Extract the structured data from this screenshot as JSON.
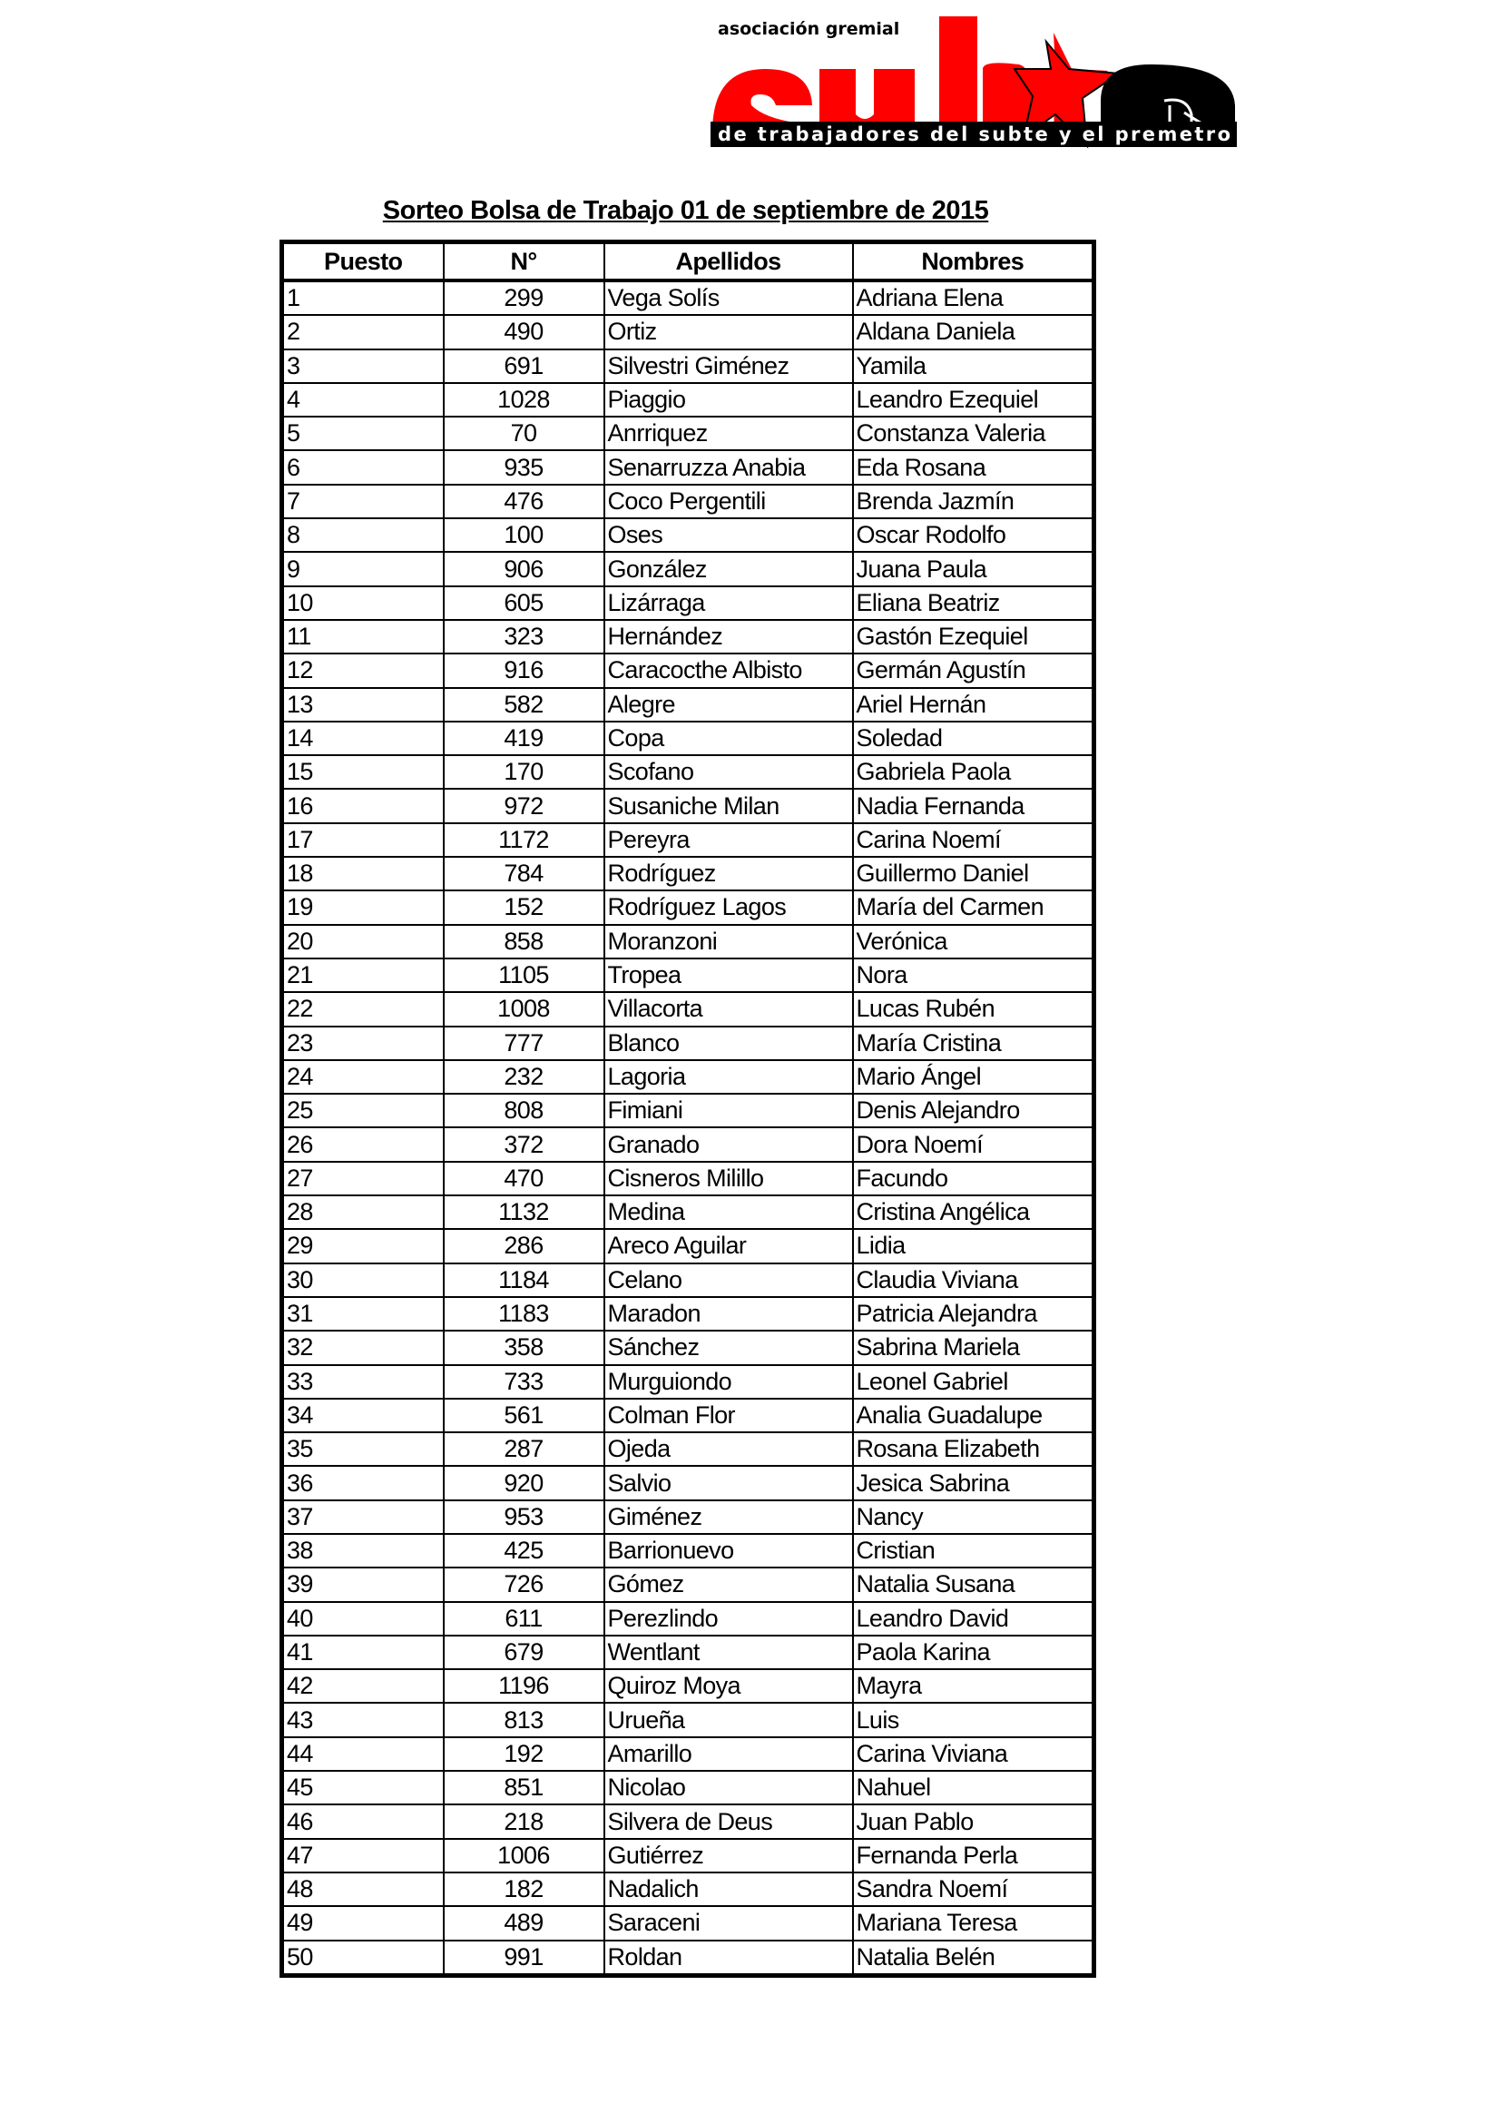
{
  "logo": {
    "top_text": "asociación gremial",
    "main_text": "subte",
    "bottom_text": "de trabajadores del subte y el premetro",
    "colors": {
      "red": "#ff0000",
      "black": "#000000"
    }
  },
  "title": "Sorteo Bolsa de Trabajo 01 de septiembre de 2015",
  "table": {
    "headers": [
      "Puesto",
      "N°",
      "Apellidos",
      "Nombres"
    ],
    "rows": [
      [
        "1",
        "299",
        "Vega Solís",
        "Adriana Elena"
      ],
      [
        "2",
        "490",
        "Ortiz",
        "Aldana Daniela"
      ],
      [
        "3",
        "691",
        "Silvestri Giménez",
        "Yamila"
      ],
      [
        "4",
        "1028",
        "Piaggio",
        "Leandro Ezequiel"
      ],
      [
        "5",
        "70",
        "Anrriquez",
        "Constanza Valeria"
      ],
      [
        "6",
        "935",
        "Senarruzza Anabia",
        "Eda Rosana"
      ],
      [
        "7",
        "476",
        "Coco Pergentili",
        "Brenda Jazmín"
      ],
      [
        "8",
        "100",
        "Oses",
        "Oscar Rodolfo"
      ],
      [
        "9",
        "906",
        "González",
        "Juana Paula"
      ],
      [
        "10",
        "605",
        "Lizárraga",
        "Eliana Beatriz"
      ],
      [
        "11",
        "323",
        "Hernández",
        "Gastón Ezequiel"
      ],
      [
        "12",
        "916",
        "Caracocthe Albisto",
        "Germán Agustín"
      ],
      [
        "13",
        "582",
        "Alegre",
        "Ariel Hernán"
      ],
      [
        "14",
        "419",
        "Copa",
        "Soledad"
      ],
      [
        "15",
        "170",
        "Scofano",
        "Gabriela Paola"
      ],
      [
        "16",
        "972",
        "Susaniche Milan",
        "Nadia Fernanda"
      ],
      [
        "17",
        "1172",
        "Pereyra",
        "Carina Noemí"
      ],
      [
        "18",
        "784",
        "Rodríguez",
        "Guillermo Daniel"
      ],
      [
        "19",
        "152",
        "Rodríguez Lagos",
        "María del Carmen"
      ],
      [
        "20",
        "858",
        "Moranzoni",
        "Verónica"
      ],
      [
        "21",
        "1105",
        "Tropea",
        "Nora"
      ],
      [
        "22",
        "1008",
        "Villacorta",
        "Lucas Rubén"
      ],
      [
        "23",
        "777",
        "Blanco",
        "María Cristina"
      ],
      [
        "24",
        "232",
        "Lagoria",
        "Mario Ángel"
      ],
      [
        "25",
        "808",
        "Fimiani",
        "Denis Alejandro"
      ],
      [
        "26",
        "372",
        "Granado",
        "Dora Noemí"
      ],
      [
        "27",
        "470",
        "Cisneros Milillo",
        "Facundo"
      ],
      [
        "28",
        "1132",
        "Medina",
        "Cristina Angélica"
      ],
      [
        "29",
        "286",
        "Areco Aguilar",
        "Lidia"
      ],
      [
        "30",
        "1184",
        "Celano",
        "Claudia Viviana"
      ],
      [
        "31",
        "1183",
        "Maradon",
        "Patricia Alejandra"
      ],
      [
        "32",
        "358",
        "Sánchez",
        "Sabrina Mariela"
      ],
      [
        "33",
        "733",
        "Murguiondo",
        "Leonel Gabriel"
      ],
      [
        "34",
        "561",
        "Colman Flor",
        "Analia Guadalupe"
      ],
      [
        "35",
        "287",
        "Ojeda",
        "Rosana Elizabeth"
      ],
      [
        "36",
        "920",
        "Salvio",
        "Jesica Sabrina"
      ],
      [
        "37",
        "953",
        "Giménez",
        "Nancy"
      ],
      [
        "38",
        "425",
        "Barrionuevo",
        "Cristian"
      ],
      [
        "39",
        "726",
        "Gómez",
        "Natalia Susana"
      ],
      [
        "40",
        "611",
        "Perezlindo",
        "Leandro David"
      ],
      [
        "41",
        "679",
        "Wentlant",
        "Paola Karina"
      ],
      [
        "42",
        "1196",
        "Quiroz Moya",
        "Mayra"
      ],
      [
        "43",
        "813",
        "Urueña",
        "Luis"
      ],
      [
        "44",
        "192",
        "Amarillo",
        "Carina Viviana"
      ],
      [
        "45",
        "851",
        "Nicolao",
        "Nahuel"
      ],
      [
        "46",
        "218",
        "Silvera de Deus",
        "Juan Pablo"
      ],
      [
        "47",
        "1006",
        "Gutiérrez",
        "Fernanda Perla"
      ],
      [
        "48",
        "182",
        "Nadalich",
        "Sandra Noemí"
      ],
      [
        "49",
        "489",
        "Saraceni",
        "Mariana Teresa"
      ],
      [
        "50",
        "991",
        "Roldan",
        "Natalia Belén"
      ]
    ]
  }
}
